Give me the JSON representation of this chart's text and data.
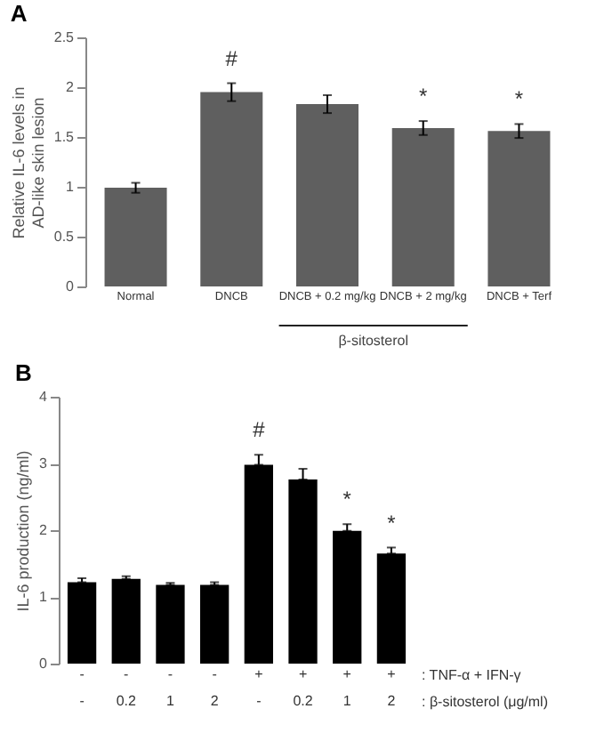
{
  "chart_data": [
    {
      "type": "bar",
      "title": "A",
      "ylabel": "Relative IL-6 levels in AD-like skin lesion",
      "categories": [
        "Normal",
        "DNCB",
        "DNCB + 0.2 mg/kg",
        "DNCB + 2 mg/kg",
        "DNCB + Terf"
      ],
      "values": [
        0.99,
        1.95,
        1.83,
        1.59,
        1.56
      ],
      "color": "#5f5f5f",
      "errors": [
        0.05,
        0.09,
        0.09,
        0.07,
        0.07
      ],
      "ylim": [
        0,
        2.5
      ],
      "yticks": [
        0,
        0.5,
        1,
        1.5,
        2,
        2.5
      ],
      "annotations": [
        {
          "text": "#",
          "x": "DNCB",
          "y": 2.04
        },
        {
          "text": "*",
          "x": "DNCB + 2 mg/kg",
          "y": 1.66
        },
        {
          "text": "*",
          "x": "DNCB + Terf",
          "y": 1.63
        },
        "β-sitosterol"
      ]
    },
    {
      "type": "bar",
      "title": "B",
      "ylabel": "IL-6 production (ng/ml)",
      "categories": [
        "-\n-",
        "-\n0.2",
        "-\n1",
        "-\n2",
        "+\n-",
        "+\n0.2",
        "+\n1",
        "+\n2"
      ],
      "values": [
        1.22,
        1.27,
        1.18,
        1.18,
        2.98,
        2.76,
        1.99,
        1.65
      ],
      "color": "#000000",
      "errors": [
        [
          1.22,
          1.28
        ],
        [
          1.27,
          1.31
        ],
        [
          1.18,
          1.21
        ],
        [
          1.18,
          1.22
        ],
        [
          2.98,
          3.13
        ],
        [
          2.76,
          2.92
        ],
        [
          1.99,
          2.09
        ],
        [
          1.65,
          1.74
        ]
      ],
      "ylim": [
        0,
        4
      ],
      "yticks": [
        0,
        1,
        2,
        3,
        4
      ],
      "annotations": [
        {
          "text": "#",
          "x": "+\n-",
          "y": 3.13
        },
        {
          "text": "*",
          "x": "+\n1",
          "y": 2.09
        },
        {
          "text": "*",
          "x": "+\n2",
          "y": 1.74
        },
        ": TNF-α + IFN-γ",
        ": β-sitosterol (μg/ml)"
      ]
    }
  ]
}
